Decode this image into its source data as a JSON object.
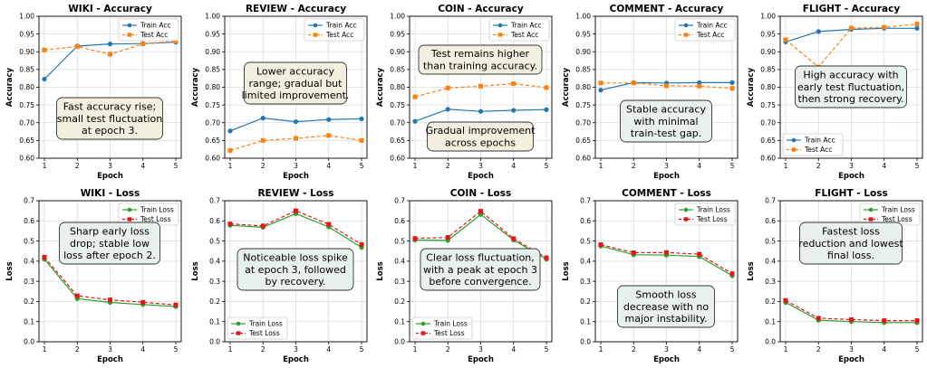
{
  "chart_data": [
    {
      "id": "wiki-acc",
      "type": "line",
      "title": "WIKI - Accuracy",
      "xlabel": "Epoch",
      "ylabel": "Accuracy",
      "x": [
        1,
        2,
        3,
        4,
        5
      ],
      "ylim": [
        0.6,
        1.0
      ],
      "yticks": [
        "0.60",
        "0.65",
        "0.70",
        "0.75",
        "0.80",
        "0.85",
        "0.90",
        "0.95",
        "1.00"
      ],
      "grid": true,
      "legend": "top-right",
      "series": [
        {
          "name": "Train Acc",
          "values": [
            0.823,
            0.916,
            0.922,
            0.923,
            0.927
          ],
          "color": "#1f77b4",
          "marker": "circle",
          "dash": "solid"
        },
        {
          "name": "Test Acc",
          "values": [
            0.905,
            0.915,
            0.893,
            0.922,
            0.93
          ],
          "color": "#ff7f0e",
          "marker": "square",
          "dash": "dashed"
        }
      ],
      "annotation": {
        "lines": [
          "Fast accuracy rise;",
          "small test fluctuation",
          "at epoch 3."
        ],
        "bg": "#f3efdf"
      }
    },
    {
      "id": "review-acc",
      "type": "line",
      "title": "REVIEW - Accuracy",
      "xlabel": "Epoch",
      "ylabel": "Accuracy",
      "x": [
        1,
        2,
        3,
        4,
        5
      ],
      "ylim": [
        0.6,
        1.0
      ],
      "yticks": [
        "0.60",
        "0.65",
        "0.70",
        "0.75",
        "0.80",
        "0.85",
        "0.90",
        "0.95",
        "1.00"
      ],
      "grid": true,
      "legend": "top-right",
      "series": [
        {
          "name": "Train Acc",
          "values": [
            0.677,
            0.713,
            0.703,
            0.709,
            0.711
          ],
          "color": "#1f77b4",
          "marker": "circle",
          "dash": "solid"
        },
        {
          "name": "Test Acc",
          "values": [
            0.622,
            0.65,
            0.656,
            0.664,
            0.65
          ],
          "color": "#ff7f0e",
          "marker": "square",
          "dash": "dashed"
        }
      ],
      "annotation": {
        "lines": [
          "Lower accuracy",
          "range; gradual but",
          "limited improvement."
        ],
        "bg": "#f3efdf"
      }
    },
    {
      "id": "coin-acc",
      "type": "line",
      "title": "COIN - Accuracy",
      "xlabel": "Epoch",
      "ylabel": "Accuracy",
      "x": [
        1,
        2,
        3,
        4,
        5
      ],
      "ylim": [
        0.6,
        1.0
      ],
      "yticks": [
        "0.60",
        "0.65",
        "0.70",
        "0.75",
        "0.80",
        "0.85",
        "0.90",
        "0.95",
        "1.00"
      ],
      "grid": true,
      "legend": "top-right",
      "series": [
        {
          "name": "Train Acc",
          "values": [
            0.704,
            0.738,
            0.732,
            0.735,
            0.737
          ],
          "color": "#1f77b4",
          "marker": "circle",
          "dash": "solid"
        },
        {
          "name": "Test Acc",
          "values": [
            0.773,
            0.798,
            0.803,
            0.81,
            0.799
          ],
          "color": "#ff7f0e",
          "marker": "square",
          "dash": "dashed"
        }
      ],
      "annotation": {
        "lines": [
          "Test remains higher",
          "than training accuracy."
        ],
        "bg": "#f3efdf"
      },
      "annotation2": {
        "lines": [
          "Gradual improvement",
          "across epochs"
        ],
        "bg": "#f3efdf"
      }
    },
    {
      "id": "comment-acc",
      "type": "line",
      "title": "COMMENT - Accuracy",
      "xlabel": "Epoch",
      "ylabel": "Accuracy",
      "x": [
        1,
        2,
        3,
        4,
        5
      ],
      "ylim": [
        0.6,
        1.0
      ],
      "yticks": [
        "0.60",
        "0.65",
        "0.70",
        "0.75",
        "0.80",
        "0.85",
        "0.90",
        "0.95",
        "1.00"
      ],
      "grid": true,
      "legend": "top-right",
      "series": [
        {
          "name": "Train Acc",
          "values": [
            0.792,
            0.813,
            0.812,
            0.813,
            0.813
          ],
          "color": "#1f77b4",
          "marker": "circle",
          "dash": "solid"
        },
        {
          "name": "Test Acc",
          "values": [
            0.812,
            0.812,
            0.804,
            0.803,
            0.797
          ],
          "color": "#ff7f0e",
          "marker": "square",
          "dash": "dashed"
        }
      ],
      "annotation": {
        "lines": [
          "Stable accuracy",
          "with minimal",
          "train-test gap."
        ],
        "bg": "#e7f0ea"
      }
    },
    {
      "id": "flight-acc",
      "type": "line",
      "title": "FLIGHT - Accuracy",
      "xlabel": "Epoch",
      "ylabel": "Accuracy",
      "x": [
        1,
        2,
        3,
        4,
        5
      ],
      "ylim": [
        0.6,
        1.0
      ],
      "yticks": [
        "0.60",
        "0.65",
        "0.70",
        "0.75",
        "0.80",
        "0.85",
        "0.90",
        "0.95",
        "1.00"
      ],
      "grid": true,
      "legend": "bottom-left",
      "series": [
        {
          "name": "Train Acc",
          "values": [
            0.928,
            0.957,
            0.963,
            0.966,
            0.966
          ],
          "color": "#1f77b4",
          "marker": "circle",
          "dash": "solid"
        },
        {
          "name": "Test Acc",
          "values": [
            0.934,
            0.857,
            0.967,
            0.969,
            0.978
          ],
          "color": "#ff7f0e",
          "marker": "square",
          "dash": "dashed"
        }
      ],
      "annotation": {
        "lines": [
          "High accuracy with",
          "early test fluctuation,",
          "then strong recovery."
        ],
        "bg": "#e7f0ea"
      }
    },
    {
      "id": "wiki-loss",
      "type": "line",
      "title": "WIKI - Loss",
      "xlabel": "Epoch",
      "ylabel": "Loss",
      "x": [
        1,
        2,
        3,
        4,
        5
      ],
      "ylim": [
        0.0,
        0.7
      ],
      "yticks": [
        "0.0",
        "0.1",
        "0.2",
        "0.3",
        "0.4",
        "0.5",
        "0.6",
        "0.7"
      ],
      "grid": true,
      "legend": "top-right",
      "series": [
        {
          "name": "Train Loss",
          "values": [
            0.41,
            0.214,
            0.195,
            0.185,
            0.175
          ],
          "color": "#2ca02c",
          "marker": "circle",
          "dash": "solid"
        },
        {
          "name": "Test Loss",
          "values": [
            0.42,
            0.228,
            0.208,
            0.196,
            0.183
          ],
          "color": "#e8141a",
          "marker": "square",
          "dash": "dashed"
        }
      ],
      "annotation": {
        "lines": [
          "Sharp early loss",
          "drop; stable low",
          "loss after epoch 2."
        ],
        "bg": "#e7f0ea"
      }
    },
    {
      "id": "review-loss",
      "type": "line",
      "title": "REVIEW - Loss",
      "xlabel": "Epoch",
      "ylabel": "Loss",
      "x": [
        1,
        2,
        3,
        4,
        5
      ],
      "ylim": [
        0.0,
        0.7
      ],
      "yticks": [
        "0.0",
        "0.1",
        "0.2",
        "0.3",
        "0.4",
        "0.5",
        "0.6",
        "0.7"
      ],
      "grid": true,
      "legend": "bottom-left",
      "series": [
        {
          "name": "Train Loss",
          "values": [
            0.578,
            0.568,
            0.636,
            0.57,
            0.468
          ],
          "color": "#2ca02c",
          "marker": "circle",
          "dash": "solid"
        },
        {
          "name": "Test Loss",
          "values": [
            0.585,
            0.575,
            0.65,
            0.583,
            0.483
          ],
          "color": "#e8141a",
          "marker": "square",
          "dash": "dashed"
        }
      ],
      "annotation": {
        "lines": [
          "Noticeable loss spike",
          "at epoch 3, followed",
          "by recovery."
        ],
        "bg": "#e7f0ea"
      }
    },
    {
      "id": "coin-loss",
      "type": "line",
      "title": "COIN - Loss",
      "xlabel": "Epoch",
      "ylabel": "Loss",
      "x": [
        1,
        2,
        3,
        4,
        5
      ],
      "ylim": [
        0.0,
        0.7
      ],
      "yticks": [
        "0.0",
        "0.1",
        "0.2",
        "0.3",
        "0.4",
        "0.5",
        "0.6",
        "0.7"
      ],
      "grid": true,
      "legend": "bottom-left",
      "series": [
        {
          "name": "Train Loss",
          "values": [
            0.505,
            0.503,
            0.632,
            0.505,
            0.41
          ],
          "color": "#2ca02c",
          "marker": "circle",
          "dash": "solid"
        },
        {
          "name": "Test Loss",
          "values": [
            0.513,
            0.518,
            0.648,
            0.512,
            0.417
          ],
          "color": "#e8141a",
          "marker": "square",
          "dash": "dashed"
        }
      ],
      "annotation": {
        "lines": [
          "Clear loss fluctuation,",
          "with a peak at epoch 3",
          "before convergence."
        ],
        "bg": "#e7f0ea"
      }
    },
    {
      "id": "comment-loss",
      "type": "line",
      "title": "COMMENT - Loss",
      "xlabel": "Epoch",
      "ylabel": "Loss",
      "x": [
        1,
        2,
        3,
        4,
        5
      ],
      "ylim": [
        0.0,
        0.7
      ],
      "yticks": [
        "0.0",
        "0.1",
        "0.2",
        "0.3",
        "0.4",
        "0.5",
        "0.6",
        "0.7"
      ],
      "grid": true,
      "legend": "top-right",
      "series": [
        {
          "name": "Train Loss",
          "values": [
            0.475,
            0.432,
            0.43,
            0.423,
            0.328
          ],
          "color": "#2ca02c",
          "marker": "circle",
          "dash": "solid"
        },
        {
          "name": "Test Loss",
          "values": [
            0.482,
            0.442,
            0.443,
            0.435,
            0.338
          ],
          "color": "#e8141a",
          "marker": "square",
          "dash": "dashed"
        }
      ],
      "annotation": {
        "lines": [
          "Smooth loss",
          "decrease with no",
          "major instability."
        ],
        "bg": "#e7f0ea"
      }
    },
    {
      "id": "flight-loss",
      "type": "line",
      "title": "FLIGHT - Loss",
      "xlabel": "Epoch",
      "ylabel": "Loss",
      "x": [
        1,
        2,
        3,
        4,
        5
      ],
      "ylim": [
        0.0,
        0.7
      ],
      "yticks": [
        "0.0",
        "0.1",
        "0.2",
        "0.3",
        "0.4",
        "0.5",
        "0.6",
        "0.7"
      ],
      "grid": true,
      "legend": "top-right",
      "series": [
        {
          "name": "Train Loss",
          "values": [
            0.195,
            0.107,
            0.1,
            0.095,
            0.095
          ],
          "color": "#2ca02c",
          "marker": "circle",
          "dash": "solid"
        },
        {
          "name": "Test Loss",
          "values": [
            0.205,
            0.117,
            0.11,
            0.105,
            0.105
          ],
          "color": "#e8141a",
          "marker": "square",
          "dash": "dashed"
        }
      ],
      "annotation": {
        "lines": [
          "Fastest loss",
          "reduction and lowest",
          "final loss."
        ],
        "bg": "#e7f0ea"
      }
    }
  ]
}
